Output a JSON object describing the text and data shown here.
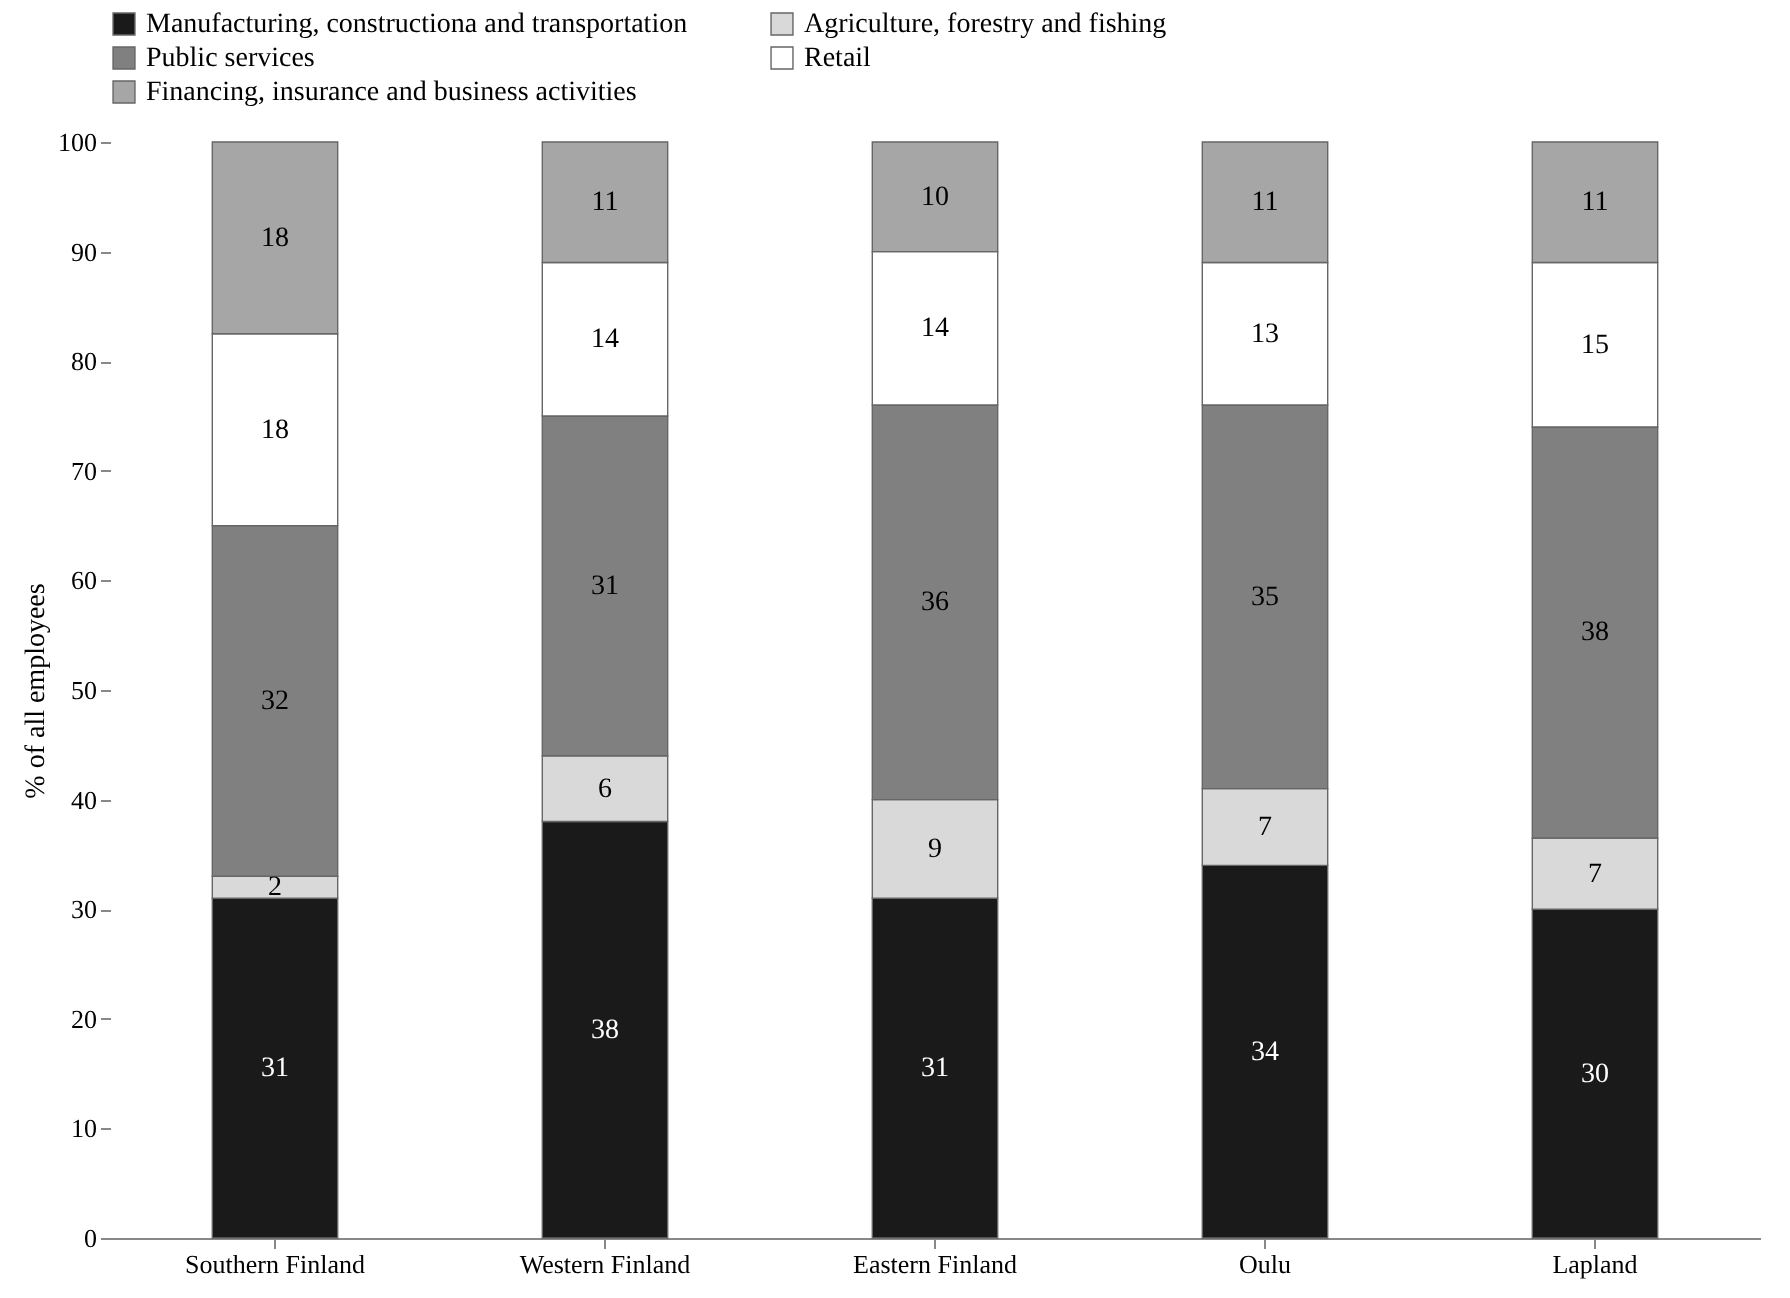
{
  "chart_data": {
    "type": "bar",
    "stacked": true,
    "ylabel": "% of all employees",
    "categories": [
      "Southern Finland",
      "Western Finland",
      "Eastern Finland",
      "Oulu",
      "Lapland"
    ],
    "series": [
      {
        "name": "Manufacturing, constructiona and transportation",
        "color": "#1a1a1a",
        "values": [
          31,
          38,
          31,
          34,
          30
        ],
        "value_labels": [
          "31",
          "38",
          "31",
          "34",
          "30"
        ]
      },
      {
        "name": "Agriculture, forestry and fishing",
        "color": "#d9d9d9",
        "values": [
          2,
          6,
          9,
          7,
          6.5
        ],
        "value_labels": [
          "2",
          "6",
          "9",
          "7",
          "7"
        ]
      },
      {
        "name": "Public services",
        "color": "#808080",
        "values": [
          32,
          31,
          36,
          35,
          37.5
        ],
        "value_labels": [
          "32",
          "31",
          "36",
          "35",
          "38"
        ]
      },
      {
        "name": "Retail",
        "color": "#ffffff",
        "values": [
          17.5,
          14,
          14,
          13,
          15
        ],
        "value_labels": [
          "18",
          "14",
          "14",
          "13",
          "15"
        ]
      },
      {
        "name": "Financing, insurance and business activities",
        "color": "#a6a6a6",
        "values": [
          17.5,
          11,
          10,
          11,
          11
        ],
        "value_labels": [
          "18",
          "11",
          "10",
          "11",
          "11"
        ]
      }
    ],
    "ylim": [
      0,
      100
    ],
    "yticks": [
      0,
      10,
      20,
      30,
      40,
      50,
      60,
      70,
      80,
      90,
      100
    ],
    "grid": false,
    "legend": "top"
  }
}
